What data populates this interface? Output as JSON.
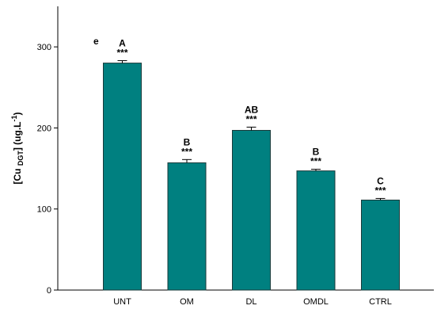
{
  "chart_data": {
    "type": "bar",
    "panel_label": "e",
    "ylabel": [
      "[Cu ",
      "DGT",
      "] (ug.L",
      "-1",
      ")"
    ],
    "categories": [
      "UNT",
      "OM",
      "DL",
      "OMDL",
      "CTRL"
    ],
    "values": [
      280,
      157,
      197,
      147,
      111
    ],
    "errors": [
      3,
      4,
      4,
      2,
      2
    ],
    "letters": [
      "A",
      "B",
      "AB",
      "B",
      "C"
    ],
    "significance": [
      "***",
      "***",
      "***",
      "***",
      "***"
    ],
    "color": "#008080",
    "ylim": [
      0,
      350
    ],
    "yticks": [
      0,
      100,
      200,
      300
    ]
  }
}
